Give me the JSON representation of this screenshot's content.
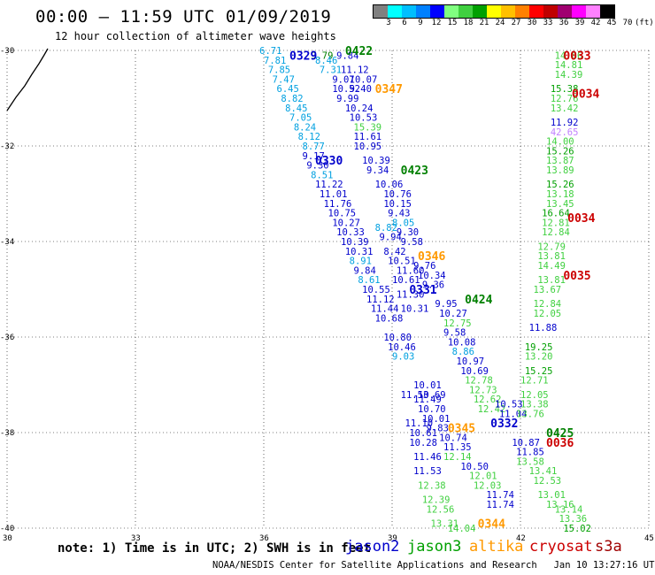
{
  "header": {
    "title": "00:00 – 11:59 UTC 01/09/2019",
    "subtitle": "12 hour collection of altimeter wave heights"
  },
  "legend": {
    "colors": [
      "#808080",
      "#00ffff",
      "#00bfff",
      "#0080ff",
      "#0000ff",
      "#80ff80",
      "#40d040",
      "#00a000",
      "#ffff00",
      "#ffc000",
      "#ff8000",
      "#ff0000",
      "#c00000",
      "#a00070",
      "#ff00ff",
      "#ff80ff",
      "#000000"
    ],
    "labels": [
      "3",
      "6",
      "9",
      "12",
      "15",
      "18",
      "21",
      "24",
      "27",
      "30",
      "33",
      "36",
      "39",
      "42",
      "45",
      "70",
      "(ft)"
    ]
  },
  "axes": {
    "lat_ticks": [
      "-30",
      "-32",
      "-34",
      "-36",
      "-38",
      "-40"
    ],
    "lon_ticks": [
      "30",
      "33",
      "36",
      "39",
      "42",
      "45"
    ]
  },
  "tracks": [
    {
      "label": "0329",
      "color": "#0000cc",
      "lat": -30.1,
      "lon": 36.6
    },
    {
      "label": "0422",
      "color": "#008000",
      "lat": -30.0,
      "lon": 37.9
    },
    {
      "label": "0347",
      "color": "#ff9900",
      "lat": -30.8,
      "lon": 38.6
    },
    {
      "label": "0330",
      "color": "#0000cc",
      "lat": -32.3,
      "lon": 37.2
    },
    {
      "label": "0423",
      "color": "#008000",
      "lat": -32.5,
      "lon": 39.2
    },
    {
      "label": "0346",
      "color": "#ff9900",
      "lat": -34.3,
      "lon": 39.6
    },
    {
      "label": "0331",
      "color": "#0000cc",
      "lat": -35.0,
      "lon": 39.4
    },
    {
      "label": "0424",
      "color": "#008000",
      "lat": -35.2,
      "lon": 40.7
    },
    {
      "label": "0332",
      "color": "#0000cc",
      "lat": -37.8,
      "lon": 41.3
    },
    {
      "label": "0345",
      "color": "#ff9900",
      "lat": -37.9,
      "lon": 40.3
    },
    {
      "label": "0425",
      "color": "#008000",
      "lat": -38.0,
      "lon": 42.6
    },
    {
      "label": "0344",
      "color": "#ff9900",
      "lat": -39.9,
      "lon": 41.0
    },
    {
      "label": "0033",
      "color": "#cc0000",
      "lat": -30.1,
      "lon": 43.0
    },
    {
      "label": "0034",
      "color": "#cc0000",
      "lat": -30.9,
      "lon": 43.2
    },
    {
      "label": "0034",
      "color": "#cc0000",
      "lat": -33.5,
      "lon": 43.1
    },
    {
      "label": "0035",
      "color": "#cc0000",
      "lat": -34.7,
      "lon": 43.0
    },
    {
      "label": "0036",
      "color": "#cc0000",
      "lat": -38.2,
      "lon": 42.6
    }
  ],
  "points": [
    {
      "v": "6.71",
      "c": "#00a0e0",
      "lat": -30.0,
      "lon": 35.9
    },
    {
      "v": "7.81",
      "c": "#00a0e0",
      "lat": -30.2,
      "lon": 36.0
    },
    {
      "v": "7.85",
      "c": "#00a0e0",
      "lat": -30.4,
      "lon": 36.1
    },
    {
      "v": "7.47",
      "c": "#00a0e0",
      "lat": -30.6,
      "lon": 36.2
    },
    {
      "v": "6.45",
      "c": "#00a0e0",
      "lat": -30.8,
      "lon": 36.3
    },
    {
      "v": "8.82",
      "c": "#00a0e0",
      "lat": -31.0,
      "lon": 36.4
    },
    {
      "v": "8.45",
      "c": "#00a0e0",
      "lat": -31.2,
      "lon": 36.5
    },
    {
      "v": "7.05",
      "c": "#00a0e0",
      "lat": -31.4,
      "lon": 36.6
    },
    {
      "v": "8.24",
      "c": "#00a0e0",
      "lat": -31.6,
      "lon": 36.7
    },
    {
      "v": "8.12",
      "c": "#00a0e0",
      "lat": -31.8,
      "lon": 36.8
    },
    {
      "v": "8.77",
      "c": "#00a0e0",
      "lat": -32.0,
      "lon": 36.9
    },
    {
      "v": "9.17",
      "c": "#0000cc",
      "lat": -32.2,
      "lon": 36.9
    },
    {
      "v": "9.30",
      "c": "#0000cc",
      "lat": -32.4,
      "lon": 37.0
    },
    {
      "v": "8.51",
      "c": "#00a0e0",
      "lat": -32.6,
      "lon": 37.1
    },
    {
      "v": "11.22",
      "c": "#0000cc",
      "lat": -32.8,
      "lon": 37.2
    },
    {
      "v": "11.01",
      "c": "#0000cc",
      "lat": -33.0,
      "lon": 37.3
    },
    {
      "v": "11.76",
      "c": "#0000cc",
      "lat": -33.2,
      "lon": 37.4
    },
    {
      "v": "10.75",
      "c": "#0000cc",
      "lat": -33.4,
      "lon": 37.5
    },
    {
      "v": "10.27",
      "c": "#0000cc",
      "lat": -33.6,
      "lon": 37.6
    },
    {
      "v": "10.33",
      "c": "#0000cc",
      "lat": -33.8,
      "lon": 37.7
    },
    {
      "v": "10.39",
      "c": "#0000cc",
      "lat": -34.0,
      "lon": 37.8
    },
    {
      "v": "10.31",
      "c": "#0000cc",
      "lat": -34.2,
      "lon": 37.9
    },
    {
      "v": "8.91",
      "c": "#00a0e0",
      "lat": -34.4,
      "lon": 38.0
    },
    {
      "v": "9.84",
      "c": "#0000cc",
      "lat": -34.6,
      "lon": 38.1
    },
    {
      "v": "8.61",
      "c": "#00a0e0",
      "lat": -34.8,
      "lon": 38.2
    },
    {
      "v": "10.55",
      "c": "#0000cc",
      "lat": -35.0,
      "lon": 38.3
    },
    {
      "v": "11.12",
      "c": "#0000cc",
      "lat": -35.2,
      "lon": 38.4
    },
    {
      "v": "11.44",
      "c": "#0000cc",
      "lat": -35.4,
      "lon": 38.5
    },
    {
      "v": "10.68",
      "c": "#0000cc",
      "lat": -35.6,
      "lon": 38.6
    },
    {
      "v": "10.80",
      "c": "#0000cc",
      "lat": -36.0,
      "lon": 38.8
    },
    {
      "v": "10.46",
      "c": "#0000cc",
      "lat": -36.2,
      "lon": 38.9
    },
    {
      "v": "9.03",
      "c": "#00a0e0",
      "lat": -36.4,
      "lon": 39.0
    },
    {
      "v": "11.53",
      "c": "#0000cc",
      "lat": -37.2,
      "lon": 39.2
    },
    {
      "v": "11.10",
      "c": "#0000cc",
      "lat": -37.8,
      "lon": 39.3
    },
    {
      "v": "10.61",
      "c": "#0000cc",
      "lat": -38.0,
      "lon": 39.4
    },
    {
      "v": "9.79",
      "c": "#008000",
      "lat": -30.1,
      "lon": 37.1
    },
    {
      "v": "8.46",
      "c": "#00a0e0",
      "lat": -30.2,
      "lon": 37.2
    },
    {
      "v": "7.31",
      "c": "#00a0e0",
      "lat": -30.4,
      "lon": 37.3
    },
    {
      "v": "9.84",
      "c": "#0000cc",
      "lat": -30.1,
      "lon": 37.7
    },
    {
      "v": "11.12",
      "c": "#0000cc",
      "lat": -30.4,
      "lon": 37.8
    },
    {
      "v": "9.07",
      "c": "#0000cc",
      "lat": -30.6,
      "lon": 37.6
    },
    {
      "v": "10.07",
      "c": "#0000cc",
      "lat": -30.6,
      "lon": 38.0
    },
    {
      "v": "10.52",
      "c": "#0000cc",
      "lat": -30.8,
      "lon": 37.6
    },
    {
      "v": "9.40",
      "c": "#0000cc",
      "lat": -30.8,
      "lon": 38.0
    },
    {
      "v": "9.99",
      "c": "#0000cc",
      "lat": -31.0,
      "lon": 37.7
    },
    {
      "v": "10.24",
      "c": "#0000cc",
      "lat": -31.2,
      "lon": 37.9
    },
    {
      "v": "10.53",
      "c": "#0000cc",
      "lat": -31.4,
      "lon": 38.0
    },
    {
      "v": "15.39",
      "c": "#40d040",
      "lat": -31.6,
      "lon": 38.1
    },
    {
      "v": "11.61",
      "c": "#0000cc",
      "lat": -31.8,
      "lon": 38.1
    },
    {
      "v": "10.95",
      "c": "#0000cc",
      "lat": -32.0,
      "lon": 38.1
    },
    {
      "v": "10.39",
      "c": "#0000cc",
      "lat": -32.3,
      "lon": 38.3
    },
    {
      "v": "9.34",
      "c": "#0000cc",
      "lat": -32.5,
      "lon": 38.4
    },
    {
      "v": "10.06",
      "c": "#0000cc",
      "lat": -32.8,
      "lon": 38.6
    },
    {
      "v": "10.76",
      "c": "#0000cc",
      "lat": -33.0,
      "lon": 38.8
    },
    {
      "v": "10.15",
      "c": "#0000cc",
      "lat": -33.2,
      "lon": 38.8
    },
    {
      "v": "9.43",
      "c": "#0000cc",
      "lat": -33.4,
      "lon": 38.9
    },
    {
      "v": "8.05",
      "c": "#00a0e0",
      "lat": -33.6,
      "lon": 39.0
    },
    {
      "v": "8.82",
      "c": "#00a0e0",
      "lat": -33.7,
      "lon": 38.6
    },
    {
      "v": "9.30",
      "c": "#0000cc",
      "lat": -33.8,
      "lon": 39.1
    },
    {
      "v": "9.94",
      "c": "#0000cc",
      "lat": -33.9,
      "lon": 38.7
    },
    {
      "v": "9.58",
      "c": "#0000cc",
      "lat": -34.0,
      "lon": 39.2
    },
    {
      "v": "8.42",
      "c": "#0000cc",
      "lat": -34.2,
      "lon": 38.8
    },
    {
      "v": "10.51",
      "c": "#0000cc",
      "lat": -34.4,
      "lon": 38.9
    },
    {
      "v": "11.60",
      "c": "#0000cc",
      "lat": -34.6,
      "lon": 39.1
    },
    {
      "v": "9.76",
      "c": "#0000cc",
      "lat": -34.5,
      "lon": 39.5
    },
    {
      "v": "10.34",
      "c": "#0000cc",
      "lat": -34.7,
      "lon": 39.6
    },
    {
      "v": "10.61",
      "c": "#0000cc",
      "lat": -34.8,
      "lon": 39.0
    },
    {
      "v": "9.36",
      "c": "#0000cc",
      "lat": -34.9,
      "lon": 39.7
    },
    {
      "v": "11.30",
      "c": "#0000cc",
      "lat": -35.1,
      "lon": 39.1
    },
    {
      "v": "10.31",
      "c": "#0000cc",
      "lat": -35.4,
      "lon": 39.2
    },
    {
      "v": "9.95",
      "c": "#0000cc",
      "lat": -35.3,
      "lon": 40.0
    },
    {
      "v": "10.27",
      "c": "#0000cc",
      "lat": -35.5,
      "lon": 40.1
    },
    {
      "v": "12.75",
      "c": "#40d040",
      "lat": -35.7,
      "lon": 40.2
    },
    {
      "v": "9.58",
      "c": "#0000cc",
      "lat": -35.9,
      "lon": 40.2
    },
    {
      "v": "10.08",
      "c": "#0000cc",
      "lat": -36.1,
      "lon": 40.3
    },
    {
      "v": "8.86",
      "c": "#00a0e0",
      "lat": -36.3,
      "lon": 40.4
    },
    {
      "v": "10.97",
      "c": "#0000cc",
      "lat": -36.5,
      "lon": 40.5
    },
    {
      "v": "10.69",
      "c": "#0000cc",
      "lat": -36.7,
      "lon": 40.6
    },
    {
      "v": "12.78",
      "c": "#40d040",
      "lat": -36.9,
      "lon": 40.7
    },
    {
      "v": "12.73",
      "c": "#40d040",
      "lat": -37.1,
      "lon": 40.8
    },
    {
      "v": "12.62",
      "c": "#40d040",
      "lat": -37.3,
      "lon": 40.9
    },
    {
      "v": "12.42",
      "c": "#40d040",
      "lat": -37.5,
      "lon": 41.0
    },
    {
      "v": "10.53",
      "c": "#0000cc",
      "lat": -37.4,
      "lon": 41.4
    },
    {
      "v": "11.04",
      "c": "#0000cc",
      "lat": -37.6,
      "lon": 41.5
    },
    {
      "v": "10.01",
      "c": "#0000cc",
      "lat": -37.0,
      "lon": 39.5
    },
    {
      "v": "10.69",
      "c": "#0000cc",
      "lat": -37.2,
      "lon": 39.6
    },
    {
      "v": "11.49",
      "c": "#0000cc",
      "lat": -37.3,
      "lon": 39.5
    },
    {
      "v": "10.70",
      "c": "#0000cc",
      "lat": -37.5,
      "lon": 39.6
    },
    {
      "v": "10.01",
      "c": "#0000cc",
      "lat": -37.7,
      "lon": 39.7
    },
    {
      "v": "9.83",
      "c": "#0000cc",
      "lat": -37.9,
      "lon": 39.8
    },
    {
      "v": "10.74",
      "c": "#0000cc",
      "lat": -38.1,
      "lon": 40.1
    },
    {
      "v": "10.28",
      "c": "#0000cc",
      "lat": -38.2,
      "lon": 39.4
    },
    {
      "v": "11.35",
      "c": "#0000cc",
      "lat": -38.3,
      "lon": 40.2
    },
    {
      "v": "11.46",
      "c": "#0000cc",
      "lat": -38.5,
      "lon": 39.5
    },
    {
      "v": "12.14",
      "c": "#40d040",
      "lat": -38.5,
      "lon": 40.2
    },
    {
      "v": "10.50",
      "c": "#0000cc",
      "lat": -38.7,
      "lon": 40.6
    },
    {
      "v": "11.53",
      "c": "#0000cc",
      "lat": -38.8,
      "lon": 39.5
    },
    {
      "v": "12.01",
      "c": "#40d040",
      "lat": -38.9,
      "lon": 40.8
    },
    {
      "v": "12.38",
      "c": "#40d040",
      "lat": -39.1,
      "lon": 39.6
    },
    {
      "v": "12.03",
      "c": "#40d040",
      "lat": -39.1,
      "lon": 40.9
    },
    {
      "v": "12.39",
      "c": "#40d040",
      "lat": -39.4,
      "lon": 39.7
    },
    {
      "v": "11.74",
      "c": "#0000cc",
      "lat": -39.3,
      "lon": 41.2
    },
    {
      "v": "12.56",
      "c": "#40d040",
      "lat": -39.6,
      "lon": 39.8
    },
    {
      "v": "11.74",
      "c": "#0000cc",
      "lat": -39.5,
      "lon": 41.2
    },
    {
      "v": "13.31",
      "c": "#40d040",
      "lat": -39.9,
      "lon": 39.9
    },
    {
      "v": "14.04",
      "c": "#40d040",
      "lat": -40.0,
      "lon": 40.3
    },
    {
      "v": "14.86",
      "c": "#40d040",
      "lat": -30.1,
      "lon": 42.8
    },
    {
      "v": "14.81",
      "c": "#40d040",
      "lat": -30.3,
      "lon": 42.8
    },
    {
      "v": "14.39",
      "c": "#40d040",
      "lat": -30.5,
      "lon": 42.8
    },
    {
      "v": "15.38",
      "c": "#00a000",
      "lat": -30.8,
      "lon": 42.7
    },
    {
      "v": "12.76",
      "c": "#40d040",
      "lat": -31.0,
      "lon": 42.7
    },
    {
      "v": "13.42",
      "c": "#40d040",
      "lat": -31.2,
      "lon": 42.7
    },
    {
      "v": "11.92",
      "c": "#0000cc",
      "lat": -31.5,
      "lon": 42.7
    },
    {
      "v": "42.65",
      "c": "#c080ff",
      "lat": -31.7,
      "lon": 42.7
    },
    {
      "v": "14.00",
      "c": "#40d040",
      "lat": -31.9,
      "lon": 42.6
    },
    {
      "v": "15.26",
      "c": "#00a000",
      "lat": -32.1,
      "lon": 42.6
    },
    {
      "v": "13.87",
      "c": "#40d040",
      "lat": -32.3,
      "lon": 42.6
    },
    {
      "v": "13.89",
      "c": "#40d040",
      "lat": -32.5,
      "lon": 42.6
    },
    {
      "v": "15.26",
      "c": "#00a000",
      "lat": -32.8,
      "lon": 42.6
    },
    {
      "v": "13.18",
      "c": "#40d040",
      "lat": -33.0,
      "lon": 42.6
    },
    {
      "v": "13.45",
      "c": "#40d040",
      "lat": -33.2,
      "lon": 42.6
    },
    {
      "v": "16.64",
      "c": "#00a000",
      "lat": -33.4,
      "lon": 42.5
    },
    {
      "v": "12.81",
      "c": "#40d040",
      "lat": -33.6,
      "lon": 42.5
    },
    {
      "v": "12.84",
      "c": "#40d040",
      "lat": -33.8,
      "lon": 42.5
    },
    {
      "v": "12.79",
      "c": "#40d040",
      "lat": -34.1,
      "lon": 42.4
    },
    {
      "v": "13.81",
      "c": "#40d040",
      "lat": -34.3,
      "lon": 42.4
    },
    {
      "v": "14.49",
      "c": "#40d040",
      "lat": -34.5,
      "lon": 42.4
    },
    {
      "v": "13.81",
      "c": "#40d040",
      "lat": -34.8,
      "lon": 42.4
    },
    {
      "v": "13.67",
      "c": "#40d040",
      "lat": -35.0,
      "lon": 42.3
    },
    {
      "v": "12.84",
      "c": "#40d040",
      "lat": -35.3,
      "lon": 42.3
    },
    {
      "v": "12.05",
      "c": "#40d040",
      "lat": -35.5,
      "lon": 42.3
    },
    {
      "v": "11.88",
      "c": "#0000cc",
      "lat": -35.8,
      "lon": 42.2
    },
    {
      "v": "19.25",
      "c": "#00a000",
      "lat": -36.2,
      "lon": 42.1
    },
    {
      "v": "13.20",
      "c": "#40d040",
      "lat": -36.4,
      "lon": 42.1
    },
    {
      "v": "15.25",
      "c": "#00a000",
      "lat": -36.7,
      "lon": 42.1
    },
    {
      "v": "12.71",
      "c": "#40d040",
      "lat": -36.9,
      "lon": 42.0
    },
    {
      "v": "12.05",
      "c": "#40d040",
      "lat": -37.2,
      "lon": 42.0
    },
    {
      "v": "13.38",
      "c": "#40d040",
      "lat": -37.4,
      "lon": 42.0
    },
    {
      "v": "13.76",
      "c": "#40d040",
      "lat": -37.6,
      "lon": 41.9
    },
    {
      "v": "10.87",
      "c": "#0000cc",
      "lat": -38.2,
      "lon": 41.8
    },
    {
      "v": "11.85",
      "c": "#0000cc",
      "lat": -38.4,
      "lon": 41.9
    },
    {
      "v": "13.58",
      "c": "#40d040",
      "lat": -38.6,
      "lon": 41.9
    },
    {
      "v": "13.41",
      "c": "#40d040",
      "lat": -38.8,
      "lon": 42.2
    },
    {
      "v": "12.53",
      "c": "#40d040",
      "lat": -39.0,
      "lon": 42.3
    },
    {
      "v": "13.01",
      "c": "#40d040",
      "lat": -39.3,
      "lon": 42.4
    },
    {
      "v": "13.16",
      "c": "#40d040",
      "lat": -39.5,
      "lon": 42.6
    },
    {
      "v": "13.14",
      "c": "#40d040",
      "lat": -39.6,
      "lon": 42.8
    },
    {
      "v": "13.36",
      "c": "#40d040",
      "lat": -39.8,
      "lon": 42.9
    },
    {
      "v": "15.02",
      "c": "#00a000",
      "lat": -40.0,
      "lon": 43.0
    }
  ],
  "footer": {
    "note": "note: 1) Time is in UTC; 2) SWH is in feet",
    "satellites": [
      {
        "name": "jason2",
        "color": "#0000cc"
      },
      {
        "name": "jason3",
        "color": "#00a000"
      },
      {
        "name": "altika",
        "color": "#ff9900"
      },
      {
        "name": "cryosat",
        "color": "#cc0000"
      },
      {
        "name": "s3a",
        "color": "#a00000"
      }
    ],
    "credit": "NOAA/NESDIS Center for Satellite Applications and Research   Jan 10 13:27:16 UTC 2019"
  }
}
